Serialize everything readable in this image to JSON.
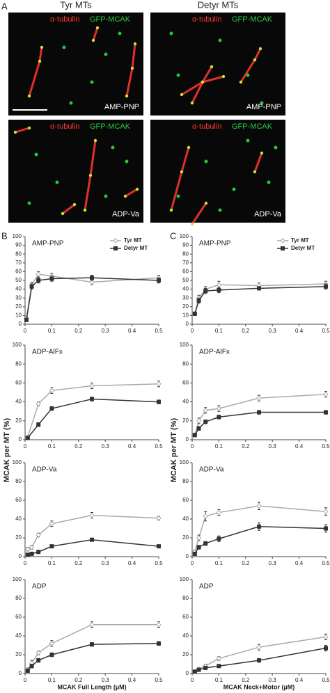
{
  "panel_a": {
    "label": "A",
    "columns": [
      "Tyr MTs",
      "Detyr MTs"
    ],
    "images": [
      {
        "stain_1": "α-tubulin",
        "stain_2": "GFP-MCAK",
        "condition": "AMP-PNP"
      },
      {
        "stain_1": "α-tubulin",
        "stain_2": "GFP-MCAK",
        "condition": "AMP-PNP"
      },
      {
        "stain_1": "α-tubulin",
        "stain_2": "GFP-MCAK",
        "condition": "ADP-Va"
      },
      {
        "stain_1": "α-tubulin",
        "stain_2": "GFP-MCAK",
        "condition": "ADP-Va"
      }
    ]
  },
  "panel_labels": [
    "B",
    "C"
  ],
  "chart_data": [
    {
      "type": "line",
      "annotation": "AMP-PNP",
      "legend": true,
      "x": [
        0.005,
        0.025,
        0.05,
        0.1,
        0.25,
        0.5
      ],
      "series": [
        {
          "name": "Tyr MT",
          "color": "#aaaaaa",
          "marker": "diamond",
          "values": [
            7,
            45,
            57,
            55,
            48,
            53
          ],
          "errors": [
            2,
            3,
            3,
            3,
            3,
            3
          ]
        },
        {
          "name": "Detyr MT",
          "color": "#333333",
          "marker": "square",
          "values": [
            5,
            43,
            50,
            52,
            53,
            50
          ],
          "errors": [
            2,
            3,
            3,
            3,
            3,
            3
          ]
        }
      ],
      "xlim": [
        0,
        0.5
      ],
      "xticks": [
        0,
        0.1,
        0.2,
        0.3,
        0.4,
        0.5
      ],
      "ylim": [
        0,
        100
      ],
      "yticks": [
        0,
        10,
        20,
        30,
        40,
        50,
        60,
        70,
        80,
        90,
        100
      ]
    },
    {
      "type": "line",
      "annotation": "ADP-AlFx",
      "ylabel": "MCAK per MT (%)",
      "x": [
        0.01,
        0.05,
        0.1,
        0.25,
        0.5
      ],
      "series": [
        {
          "color": "#aaaaaa",
          "marker": "diamond",
          "values": [
            3,
            38,
            52,
            57,
            59
          ],
          "errors": [
            1,
            2,
            3,
            3,
            3
          ]
        },
        {
          "color": "#333333",
          "marker": "square",
          "values": [
            2,
            16,
            33,
            43,
            40
          ],
          "errors": [
            1,
            2,
            2,
            2,
            2
          ]
        }
      ],
      "xlim": [
        0,
        0.5
      ],
      "xticks": [
        0,
        0.1,
        0.2,
        0.3,
        0.4,
        0.5
      ],
      "ylim": [
        0,
        100
      ],
      "yticks": [
        0,
        20,
        40,
        60,
        80,
        100
      ]
    },
    {
      "type": "line",
      "annotation": "ADP-Va",
      "x": [
        0.01,
        0.025,
        0.05,
        0.1,
        0.25,
        0.5
      ],
      "series": [
        {
          "color": "#aaaaaa",
          "marker": "diamond",
          "values": [
            8,
            10,
            23,
            35,
            44,
            41
          ],
          "errors": [
            2,
            2,
            2,
            3,
            3,
            2
          ]
        },
        {
          "color": "#333333",
          "marker": "square",
          "values": [
            2,
            3,
            5,
            11,
            18,
            11
          ],
          "errors": [
            1,
            1,
            1,
            1,
            1,
            1
          ]
        }
      ],
      "xlim": [
        0,
        0.5
      ],
      "xticks": [
        0,
        0.1,
        0.2,
        0.3,
        0.4,
        0.5
      ],
      "ylim": [
        0,
        100
      ],
      "yticks": [
        0,
        20,
        40,
        60,
        80,
        100
      ]
    },
    {
      "type": "line",
      "annotation": "ADP",
      "xlabel": "MCAK Full Length (µM)",
      "x": [
        0.01,
        0.025,
        0.05,
        0.1,
        0.25,
        0.5
      ],
      "series": [
        {
          "color": "#aaaaaa",
          "marker": "diamond",
          "values": [
            4,
            11,
            22,
            32,
            52,
            52
          ],
          "errors": [
            2,
            3,
            2,
            3,
            3,
            3
          ]
        },
        {
          "color": "#333333",
          "marker": "square",
          "values": [
            3,
            8,
            14,
            20,
            31,
            32
          ],
          "errors": [
            1,
            2,
            2,
            2,
            2,
            2
          ]
        }
      ],
      "xlim": [
        0,
        0.5
      ],
      "xticks": [
        0,
        0.1,
        0.2,
        0.3,
        0.4,
        0.5
      ],
      "ylim": [
        0,
        100
      ],
      "yticks": [
        0,
        20,
        40,
        60,
        80,
        100
      ]
    },
    {
      "type": "line",
      "annotation": "AMP-PNP",
      "legend": true,
      "x": [
        0.01,
        0.025,
        0.05,
        0.1,
        0.25,
        0.5
      ],
      "series": [
        {
          "name": "Tyr MT",
          "color": "#aaaaaa",
          "marker": "diamond",
          "values": [
            12,
            30,
            40,
            45,
            44,
            46
          ],
          "errors": [
            2,
            3,
            3,
            4,
            3,
            3
          ]
        },
        {
          "name": "Detyr MT",
          "color": "#333333",
          "marker": "square",
          "values": [
            12,
            27,
            38,
            39,
            41,
            43
          ],
          "errors": [
            2,
            3,
            3,
            3,
            2,
            3
          ]
        }
      ],
      "xlim": [
        0,
        0.5
      ],
      "xticks": [
        0,
        0.1,
        0.2,
        0.3,
        0.4,
        0.5
      ],
      "ylim": [
        0,
        100
      ],
      "yticks": [
        0,
        10,
        20,
        30,
        40,
        50,
        60,
        70,
        80,
        90,
        100
      ]
    },
    {
      "type": "line",
      "annotation": "ADP-AlFx",
      "ylabel": "MCAK per MT (%)",
      "x": [
        0.01,
        0.025,
        0.05,
        0.1,
        0.25,
        0.5
      ],
      "series": [
        {
          "color": "#aaaaaa",
          "marker": "diamond",
          "values": [
            5,
            20,
            31,
            33,
            44,
            48
          ],
          "errors": [
            2,
            3,
            3,
            3,
            3,
            3
          ]
        },
        {
          "color": "#333333",
          "marker": "square",
          "values": [
            5,
            12,
            19,
            24,
            29,
            29
          ],
          "errors": [
            1,
            2,
            2,
            2,
            2,
            2
          ]
        }
      ],
      "xlim": [
        0,
        0.5
      ],
      "xticks": [
        0,
        0.1,
        0.2,
        0.3,
        0.4,
        0.5
      ],
      "ylim": [
        0,
        100
      ],
      "yticks": [
        0,
        20,
        40,
        60,
        80,
        100
      ]
    },
    {
      "type": "line",
      "annotation": "ADP-Va",
      "x": [
        0.01,
        0.025,
        0.05,
        0.1,
        0.25,
        0.5
      ],
      "series": [
        {
          "color": "#aaaaaa",
          "marker": "diamond",
          "values": [
            5,
            20,
            43,
            47,
            54,
            48
          ],
          "errors": [
            2,
            3,
            5,
            3,
            4,
            4
          ]
        },
        {
          "color": "#333333",
          "marker": "square",
          "values": [
            3,
            10,
            14,
            19,
            32,
            30
          ],
          "errors": [
            1,
            2,
            2,
            3,
            4,
            4
          ]
        }
      ],
      "xlim": [
        0,
        0.5
      ],
      "xticks": [
        0,
        0.1,
        0.2,
        0.3,
        0.4,
        0.5
      ],
      "ylim": [
        0,
        100
      ],
      "yticks": [
        0,
        20,
        40,
        60,
        80,
        100
      ]
    },
    {
      "type": "line",
      "annotation": "ADP",
      "xlabel": "MCAK Neck+Motor (µM)",
      "x": [
        0.01,
        0.025,
        0.05,
        0.1,
        0.25,
        0.5
      ],
      "series": [
        {
          "color": "#aaaaaa",
          "marker": "diamond",
          "values": [
            2,
            5,
            8,
            16,
            28,
            39
          ],
          "errors": [
            1,
            1,
            2,
            2,
            3,
            3
          ]
        },
        {
          "color": "#333333",
          "marker": "square",
          "values": [
            2,
            4,
            6,
            8,
            14,
            27
          ],
          "errors": [
            1,
            1,
            1,
            1,
            2,
            3
          ]
        }
      ],
      "xlim": [
        0,
        0.5
      ],
      "xticks": [
        0,
        0.1,
        0.2,
        0.3,
        0.4,
        0.5
      ],
      "ylim": [
        0,
        100
      ],
      "yticks": [
        0,
        20,
        40,
        60,
        80,
        100
      ]
    }
  ]
}
